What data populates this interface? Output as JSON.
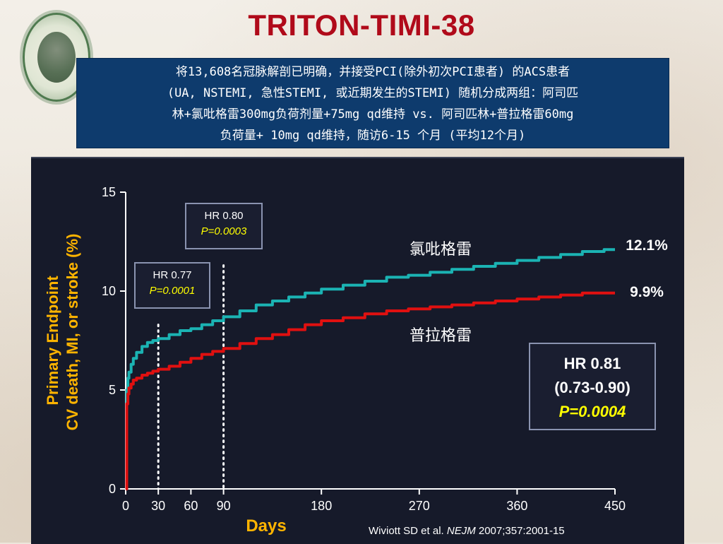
{
  "slide": {
    "title": "TRITON-TIMI-38",
    "description_lines": [
      "将13,608名冠脉解剖已明确，并接受PCI(除外初次PCI患者) 的ACS患者",
      "(UA, NSTEMI, 急性STEMI, 或近期发生的STEMI) 随机分成两组：阿司匹",
      "林+氯吡格雷300mg负荷剂量+75mg qd维持 vs. 阿司匹林+普拉格雷60mg",
      "负荷量+ 10mg qd维持，随访6-15 个月 (平均12个月)"
    ]
  },
  "colors": {
    "title": "#b00a1a",
    "desc_bg": "#0e3b6d",
    "panel_bg": "#161a2a",
    "clopidogrel": "#1bb3b3",
    "prasugrel": "#e01010",
    "axis_label": "#ffb400",
    "p_value": "#ffff00"
  },
  "chart_data": {
    "type": "line",
    "title": "",
    "xlabel": "Days",
    "ylabel_line1": "Primary Endpoint",
    "ylabel_line2": "CV death, MI, or stroke (%)",
    "xlim": [
      0,
      450
    ],
    "ylim": [
      0,
      15
    ],
    "x_ticks": [
      0,
      30,
      60,
      90,
      180,
      270,
      360,
      450
    ],
    "y_ticks": [
      0,
      5,
      10,
      15
    ],
    "series": [
      {
        "name": "氯吡格雷",
        "color": "#1bb3b3",
        "end_label": "12.1%",
        "x": [
          0,
          1,
          2,
          3,
          5,
          7,
          10,
          15,
          20,
          25,
          30,
          40,
          50,
          60,
          70,
          80,
          90,
          105,
          120,
          135,
          150,
          165,
          180,
          200,
          220,
          240,
          260,
          280,
          300,
          320,
          340,
          360,
          380,
          400,
          420,
          440
        ],
        "y": [
          0,
          5.0,
          5.6,
          5.9,
          6.3,
          6.6,
          6.9,
          7.2,
          7.4,
          7.5,
          7.6,
          7.8,
          8.0,
          8.1,
          8.3,
          8.5,
          8.7,
          9.0,
          9.3,
          9.5,
          9.7,
          9.9,
          10.1,
          10.3,
          10.5,
          10.7,
          10.8,
          10.95,
          11.1,
          11.25,
          11.4,
          11.55,
          11.7,
          11.85,
          12.0,
          12.1
        ]
      },
      {
        "name": "普拉格雷",
        "color": "#e01010",
        "end_label": "9.9%",
        "x": [
          0,
          1,
          2,
          3,
          5,
          7,
          10,
          15,
          20,
          25,
          30,
          40,
          50,
          60,
          70,
          80,
          90,
          105,
          120,
          135,
          150,
          165,
          180,
          200,
          220,
          240,
          260,
          280,
          300,
          320,
          340,
          360,
          380,
          400,
          420,
          440
        ],
        "y": [
          0,
          4.3,
          4.8,
          5.1,
          5.3,
          5.5,
          5.6,
          5.75,
          5.85,
          5.95,
          6.05,
          6.2,
          6.4,
          6.6,
          6.8,
          6.95,
          7.1,
          7.35,
          7.6,
          7.8,
          8.05,
          8.3,
          8.5,
          8.65,
          8.85,
          9.0,
          9.1,
          9.2,
          9.3,
          9.4,
          9.5,
          9.6,
          9.7,
          9.8,
          9.9,
          9.9
        ]
      }
    ],
    "annotations": {
      "marker_30": {
        "day": 30,
        "hr": "HR 0.77",
        "p": "P=0.0001"
      },
      "marker_90": {
        "day": 90,
        "hr": "HR 0.80",
        "p": "P=0.0003"
      },
      "overall": {
        "hr": "HR 0.81",
        "ci": "(0.73-0.90)",
        "p": "P=0.0004"
      }
    },
    "citation_prefix": "Wiviott SD et al. ",
    "citation_journal": "NEJM",
    "citation_suffix": " 2007;357:2001-15"
  }
}
